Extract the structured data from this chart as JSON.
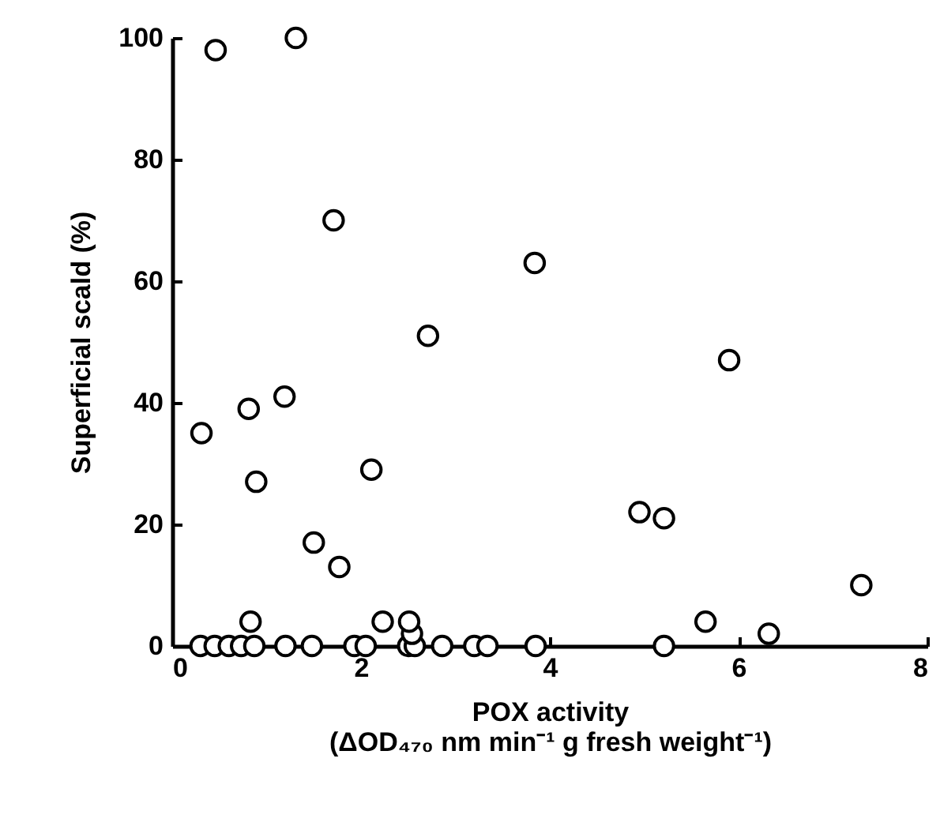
{
  "chart_data": {
    "type": "scatter",
    "xlabel": "POX activity\n(ΔOD₄₇₀ nm min⁻¹ g fresh weight⁻¹)",
    "ylabel": "Superficial scald (%)",
    "x": [
      0.46,
      1.31,
      1.71,
      3.84,
      2.71,
      5.9,
      1.19,
      0.81,
      0.31,
      2.11,
      0.89,
      4.95,
      5.21,
      1.5,
      1.77,
      7.3,
      0.83,
      2.23,
      2.51,
      2.54,
      5.65,
      6.32,
      0.3,
      0.45,
      0.6,
      0.73,
      0.87,
      1.2,
      1.48,
      1.93,
      2.05,
      2.5,
      2.57,
      2.86,
      3.2,
      3.34,
      3.85,
      5.21
    ],
    "series": [
      {
        "color": "#000000",
        "values": [
          98,
          100,
          70,
          63,
          51,
          47,
          41,
          39,
          35,
          29,
          27,
          22,
          21,
          17,
          13,
          10,
          4,
          4,
          4,
          2,
          4,
          2,
          0,
          0,
          0,
          0,
          0,
          0,
          0,
          0,
          0,
          0,
          0,
          0,
          0,
          0,
          0,
          0
        ]
      }
    ],
    "xlim": [
      0,
      8
    ],
    "xticks": [
      0,
      2,
      4,
      6,
      8
    ],
    "ylim": [
      0,
      100
    ],
    "yticks": [
      0,
      20,
      40,
      60,
      80,
      100
    ],
    "grid": false,
    "legend": false,
    "marker": "circle"
  }
}
